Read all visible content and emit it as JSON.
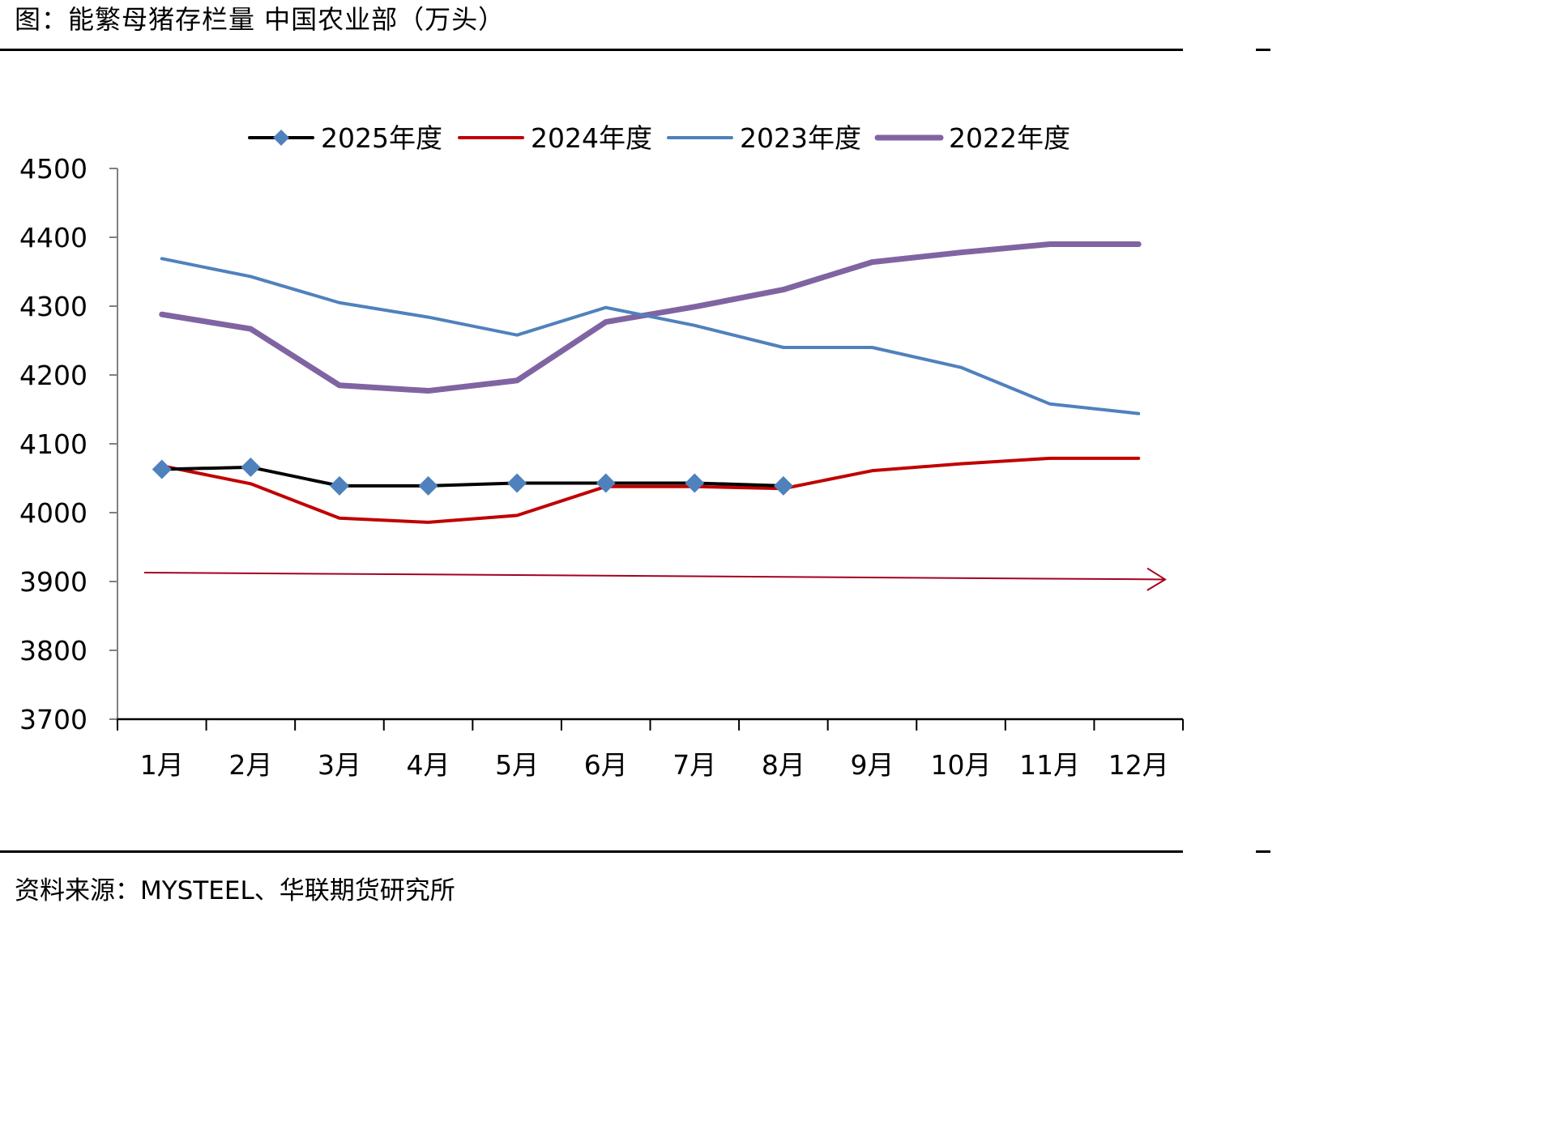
{
  "figure": {
    "title": "图：能繁母猪存栏量 中国农业部（万头）",
    "source": "资料来源：MYSTEEL、华联期货研究所"
  },
  "colors": {
    "s2025": "#000000",
    "s2025_marker": "#4f81bd",
    "s2024": "#c00000",
    "s2023": "#4f81bd",
    "s2022": "#8064a2",
    "axis": "#808080",
    "arrow": "#a50021"
  },
  "chart_data": {
    "type": "line",
    "categories": [
      "1月",
      "2月",
      "3月",
      "4月",
      "5月",
      "6月",
      "7月",
      "8月",
      "9月",
      "10月",
      "11月",
      "12月"
    ],
    "ylim": [
      3700,
      4500
    ],
    "yticks": [
      3700,
      3800,
      3900,
      4000,
      4100,
      4200,
      4300,
      4400,
      4500
    ],
    "grid": false,
    "legend_position": "top",
    "series": [
      {
        "name": "2025年度",
        "color": "#000000",
        "marker": "diamond",
        "values": [
          4063,
          4066,
          4039,
          4039,
          4043,
          4043,
          4043,
          4039,
          null,
          null,
          null,
          null
        ]
      },
      {
        "name": "2024年度",
        "color": "#c00000",
        "values": [
          4068,
          4042,
          3992,
          3986,
          3996,
          4038,
          4038,
          4035,
          4061,
          4071,
          4079,
          4079
        ]
      },
      {
        "name": "2023年度",
        "color": "#4f81bd",
        "values": [
          4369,
          4343,
          4305,
          4284,
          4258,
          4298,
          4272,
          4240,
          4240,
          4211,
          4158,
          4144
        ]
      },
      {
        "name": "2022年度",
        "color": "#8064a2",
        "values": [
          4288,
          4267,
          4185,
          4177,
          4192,
          4277,
          4299,
          4324,
          4364,
          4378,
          4390,
          4390
        ]
      }
    ],
    "annotations": [
      {
        "type": "arrow",
        "from": {
          "category_pos": -0.2,
          "y": 3913
        },
        "to": {
          "category_pos": 11.3,
          "y": 3903
        }
      }
    ]
  }
}
